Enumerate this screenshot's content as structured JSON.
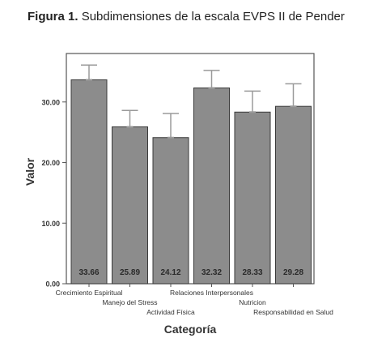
{
  "figure": {
    "label": "Figura 1.",
    "caption": "Subdimensiones de la escala EVPS II de Pender"
  },
  "chart_data": {
    "type": "bar",
    "categories": [
      "Crecimiento Espiritual",
      "Manejo del Stress",
      "Actividad Física",
      "Relaciones Interpersonales",
      "Nutricion",
      "Responsabilidad en Salud"
    ],
    "values": [
      33.66,
      25.89,
      24.12,
      32.32,
      28.33,
      29.28
    ],
    "value_labels": [
      "33.66",
      "25.89",
      "24.12",
      "32.32",
      "28.33",
      "29.28"
    ],
    "error_upper": [
      36.1,
      28.6,
      28.1,
      35.2,
      31.8,
      33.0
    ],
    "error_lower": [
      33.66,
      25.89,
      24.12,
      32.32,
      28.33,
      29.28
    ],
    "xlabel": "Categoría",
    "ylabel": "Valor",
    "ylim": [
      0,
      38
    ],
    "yticks": [
      0,
      10,
      20,
      30
    ],
    "ytick_labels": [
      "0.00",
      "10.00",
      "20.00",
      "30.00"
    ],
    "grid": false,
    "bar_color": "#8c8c8c",
    "error_color": "#9a9a9a",
    "frame_color": "#555555"
  }
}
